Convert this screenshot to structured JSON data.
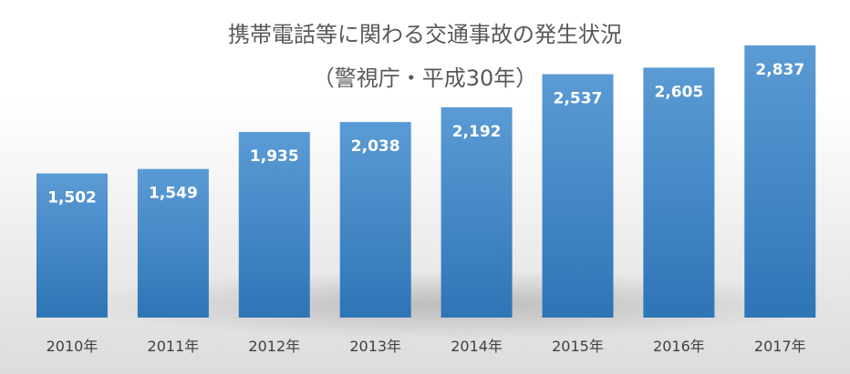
{
  "chart_data": {
    "type": "bar",
    "title": "携帯電話等に関わる交通事故の発生状況",
    "subtitle": "（警視庁・平成30年）",
    "categories": [
      "2010年",
      "2011年",
      "2012年",
      "2013年",
      "2014年",
      "2015年",
      "2016年",
      "2017年"
    ],
    "values": [
      1502,
      1549,
      1935,
      2038,
      2192,
      2537,
      2605,
      2837
    ],
    "data_labels": [
      "1,502",
      "1,549",
      "1,935",
      "2,038",
      "2,192",
      "2,537",
      "2,605",
      "2,837"
    ],
    "xlabel": "",
    "ylabel": "",
    "ylim": [
      0,
      3120
    ],
    "grid": false,
    "legend": "none",
    "colors": {
      "bar_top": "#5b9bd5",
      "bar_bottom": "#2e75b6",
      "title_text": "#595959",
      "tick_text": "#404040",
      "data_label_text": "#ffffff",
      "background_top": "#ffffff",
      "background_bottom": "#dcdcdc"
    }
  }
}
